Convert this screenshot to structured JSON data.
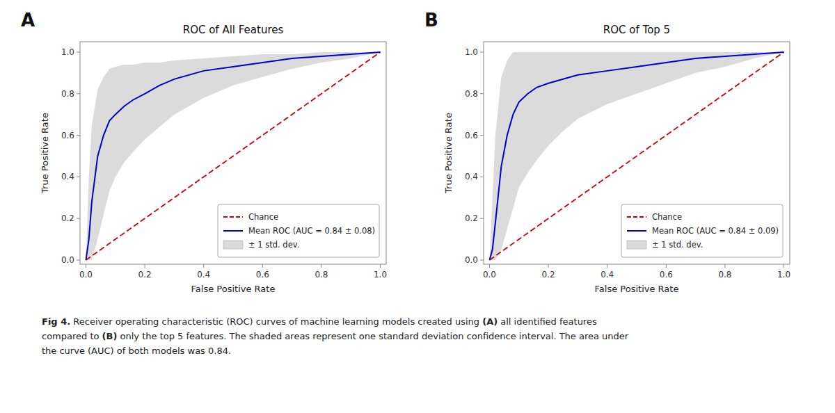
{
  "chart_data": [
    {
      "type": "line",
      "title": "ROC of All Features",
      "annotations": [
        "A"
      ],
      "x_label": "False Positive Rate",
      "y_label": "True Positive Rate",
      "xlim": [
        -0.02,
        1.02
      ],
      "ylim": [
        -0.02,
        1.05
      ],
      "xticks": [
        {
          "value": 0.0,
          "label": "0.0"
        },
        0.2,
        0.4,
        0.6,
        0.8,
        {
          "value": 1.0,
          "label": "1.0"
        }
      ],
      "yticks": [
        {
          "value": 0.0,
          "label": "0.0"
        },
        0.2,
        0.4,
        0.6,
        0.8,
        {
          "value": 1.0,
          "label": "1.0"
        }
      ],
      "grid": false,
      "legend": "lower right",
      "series": [
        {
          "name": "Chance",
          "type": "line",
          "line_style": "dashed",
          "color": "#cc0000",
          "x": [
            0.0,
            1.0
          ],
          "values": [
            0.0,
            1.0
          ]
        },
        {
          "name": "Mean ROC (AUC = 0.84 ± 0.08)",
          "type": "line",
          "line_style": "solid",
          "color": "#0000cc",
          "x": [
            0.0,
            0.01,
            0.02,
            0.04,
            0.06,
            0.08,
            0.1,
            0.13,
            0.16,
            0.2,
            0.25,
            0.3,
            0.4,
            0.5,
            0.6,
            0.7,
            0.8,
            0.9,
            1.0
          ],
          "values": [
            0.0,
            0.1,
            0.28,
            0.5,
            0.6,
            0.67,
            0.7,
            0.74,
            0.77,
            0.8,
            0.84,
            0.87,
            0.91,
            0.93,
            0.95,
            0.97,
            0.98,
            0.99,
            1.0
          ]
        },
        {
          "name": "± 1 std. dev.",
          "type": "band",
          "color": "#b0b0b0",
          "x": [
            0.0,
            0.01,
            0.02,
            0.04,
            0.06,
            0.08,
            0.1,
            0.13,
            0.16,
            0.2,
            0.25,
            0.3,
            0.4,
            0.5,
            0.6,
            0.7,
            0.8,
            0.9,
            1.0
          ],
          "lower": [
            0.0,
            0.0,
            0.0,
            0.1,
            0.22,
            0.33,
            0.4,
            0.47,
            0.52,
            0.58,
            0.64,
            0.7,
            0.78,
            0.84,
            0.88,
            0.92,
            0.95,
            0.97,
            1.0
          ],
          "upper": [
            0.0,
            0.4,
            0.65,
            0.82,
            0.88,
            0.92,
            0.93,
            0.94,
            0.94,
            0.95,
            0.95,
            0.96,
            0.97,
            0.98,
            0.99,
            0.99,
            1.0,
            1.0,
            1.0
          ]
        }
      ]
    },
    {
      "type": "line",
      "title": "ROC of Top 5",
      "annotations": [
        "B"
      ],
      "x_label": "False Positive Rate",
      "y_label": "True Positive Rate",
      "xlim": [
        -0.02,
        1.02
      ],
      "ylim": [
        -0.02,
        1.05
      ],
      "xticks": [
        {
          "value": 0.0,
          "label": "0.0"
        },
        0.2,
        0.4,
        0.6,
        0.8,
        {
          "value": 1.0,
          "label": "1.0"
        }
      ],
      "yticks": [
        {
          "value": 0.0,
          "label": "0.0"
        },
        0.2,
        0.4,
        0.6,
        0.8,
        {
          "value": 1.0,
          "label": "1.0"
        }
      ],
      "grid": false,
      "legend": "lower right",
      "series": [
        {
          "name": "Chance",
          "type": "line",
          "line_style": "dashed",
          "color": "#cc0000",
          "x": [
            0.0,
            1.0
          ],
          "values": [
            0.0,
            1.0
          ]
        },
        {
          "name": "Mean ROC (AUC = 0.84 ± 0.09)",
          "type": "line",
          "line_style": "solid",
          "color": "#0000cc",
          "x": [
            0.0,
            0.01,
            0.02,
            0.04,
            0.06,
            0.08,
            0.1,
            0.13,
            0.16,
            0.2,
            0.25,
            0.3,
            0.4,
            0.5,
            0.6,
            0.7,
            0.8,
            0.9,
            1.0
          ],
          "values": [
            0.0,
            0.05,
            0.18,
            0.45,
            0.6,
            0.7,
            0.76,
            0.8,
            0.83,
            0.85,
            0.87,
            0.89,
            0.91,
            0.93,
            0.95,
            0.97,
            0.98,
            0.99,
            1.0
          ]
        },
        {
          "name": "± 1 std. dev.",
          "type": "band",
          "color": "#b0b0b0",
          "x": [
            0.0,
            0.01,
            0.02,
            0.04,
            0.06,
            0.08,
            0.1,
            0.13,
            0.16,
            0.2,
            0.25,
            0.3,
            0.4,
            0.5,
            0.6,
            0.7,
            0.8,
            0.9,
            1.0
          ],
          "lower": [
            0.0,
            0.0,
            0.0,
            0.05,
            0.15,
            0.25,
            0.35,
            0.42,
            0.48,
            0.55,
            0.62,
            0.68,
            0.75,
            0.8,
            0.85,
            0.9,
            0.93,
            0.97,
            1.0
          ],
          "upper": [
            0.0,
            0.3,
            0.6,
            0.88,
            0.96,
            1.0,
            1.0,
            1.0,
            1.0,
            1.0,
            1.0,
            1.0,
            1.0,
            1.0,
            1.0,
            1.0,
            1.0,
            1.0,
            1.0
          ]
        }
      ]
    }
  ],
  "caption": [
    [
      {
        "text": "Fig 4.",
        "bold": true
      },
      {
        "text": " Receiver operating characteristic (ROC) curves of machine learning models created using ",
        "bold": false
      },
      {
        "text": "(A)",
        "bold": true
      },
      {
        "text": " all identified features",
        "bold": false
      }
    ],
    [
      {
        "text": "compared to ",
        "bold": false
      },
      {
        "text": "(B)",
        "bold": true
      },
      {
        "text": " only the top 5 features. The shaded areas represent one standard deviation confidence interval. The area under",
        "bold": false
      }
    ],
    [
      {
        "text": "the curve (AUC) of both models was 0.84.",
        "bold": false
      }
    ]
  ]
}
